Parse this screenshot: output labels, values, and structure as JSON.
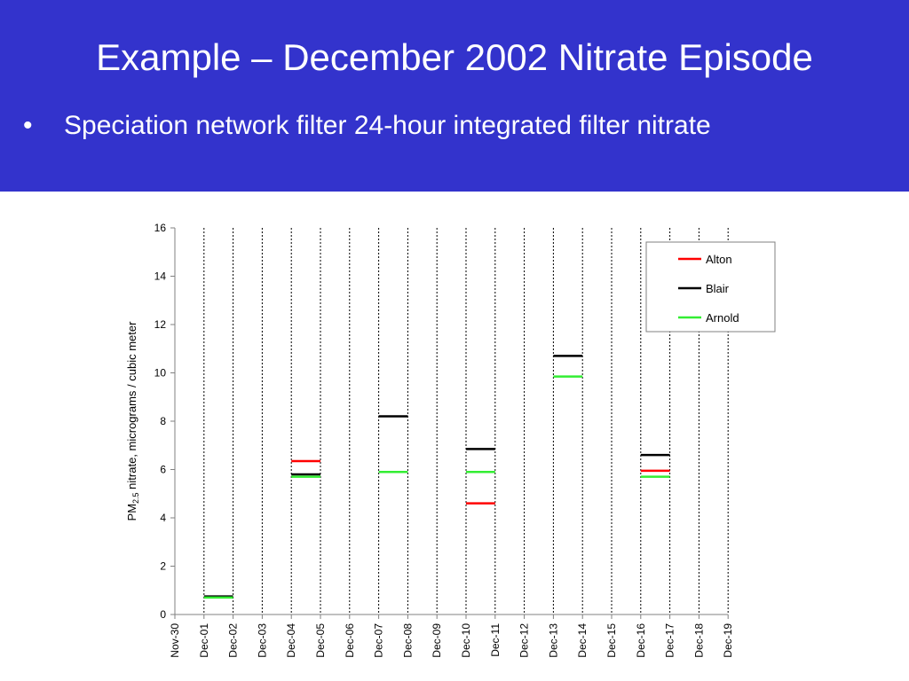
{
  "slide": {
    "title": "Example – December 2002 Nitrate Episode",
    "bullet_marker": "•",
    "bullet": "Speciation network filter 24-hour integrated filter nitrate",
    "header_color": "#3333cc"
  },
  "chart_data": {
    "type": "line",
    "title": "",
    "ylabel_main": "PM",
    "ylabel_sub": "2.5",
    "ylabel_rest": " nitrate, micrograms / cubic meter",
    "xlabel": "",
    "ylim": [
      0,
      16
    ],
    "yticks": [
      0,
      2,
      4,
      6,
      8,
      10,
      12,
      14,
      16
    ],
    "categories": [
      "Nov-30",
      "Dec-01",
      "Dec-02",
      "Dec-03",
      "Dec-04",
      "Dec-05",
      "Dec-06",
      "Dec-07",
      "Dec-08",
      "Dec-09",
      "Dec-10",
      "Dec-11",
      "Dec-12",
      "Dec-13",
      "Dec-14",
      "Dec-15",
      "Dec-16",
      "Dec-17",
      "Dec-18",
      "Dec-19"
    ],
    "grid": "vertical dotted",
    "legend_position": "top-right",
    "series": [
      {
        "name": "Alton",
        "color": "#ff0000",
        "segments": [
          {
            "start": "Dec-04",
            "end": "Dec-05",
            "value": 6.35
          },
          {
            "start": "Dec-10",
            "end": "Dec-11",
            "value": 4.6
          },
          {
            "start": "Dec-16",
            "end": "Dec-17",
            "value": 5.95
          }
        ]
      },
      {
        "name": "Blair",
        "color": "#000000",
        "segments": [
          {
            "start": "Dec-01",
            "end": "Dec-02",
            "value": 0.75
          },
          {
            "start": "Dec-04",
            "end": "Dec-05",
            "value": 5.8
          },
          {
            "start": "Dec-07",
            "end": "Dec-08",
            "value": 8.2
          },
          {
            "start": "Dec-10",
            "end": "Dec-11",
            "value": 6.85
          },
          {
            "start": "Dec-13",
            "end": "Dec-14",
            "value": 10.7
          },
          {
            "start": "Dec-16",
            "end": "Dec-17",
            "value": 6.6
          }
        ]
      },
      {
        "name": "Arnold",
        "color": "#33ee33",
        "segments": [
          {
            "start": "Dec-01",
            "end": "Dec-02",
            "value": 0.7
          },
          {
            "start": "Dec-04",
            "end": "Dec-05",
            "value": 5.7
          },
          {
            "start": "Dec-07",
            "end": "Dec-08",
            "value": 5.9
          },
          {
            "start": "Dec-10",
            "end": "Dec-11",
            "value": 5.9
          },
          {
            "start": "Dec-13",
            "end": "Dec-14",
            "value": 9.85
          },
          {
            "start": "Dec-16",
            "end": "Dec-17",
            "value": 5.7
          }
        ]
      }
    ]
  }
}
